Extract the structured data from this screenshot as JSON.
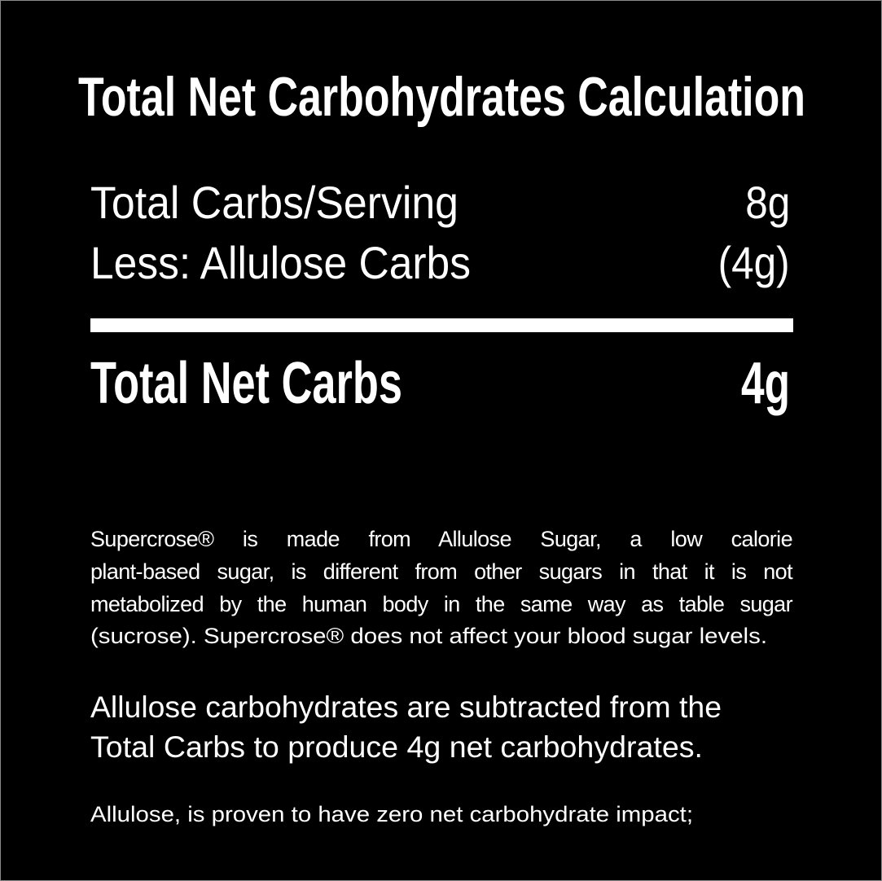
{
  "title": "Total Net Carbohydrates Calculation",
  "rows": [
    {
      "label": "Total Carbs/Serving",
      "value": "8g"
    },
    {
      "label": "Less: Allulose Carbs",
      "value": "(4g)"
    }
  ],
  "total": {
    "label": "Total Net Carbs",
    "value": "4g"
  },
  "paragraph1": [
    "Supercrose® is made from Allulose Sugar, a low calorie",
    "plant-based sugar, is different from other sugars in that it is not",
    "metabolized by the human body in the same way as table sugar",
    "(sucrose). Supercrose® does not affect your blood sugar levels."
  ],
  "paragraph2": [
    "Allulose carbohydrates are subtracted from the",
    "Total Carbs to produce 4g net carbohydrates."
  ],
  "footnote": "Allulose, is proven to have zero net carbohydrate impact;"
}
